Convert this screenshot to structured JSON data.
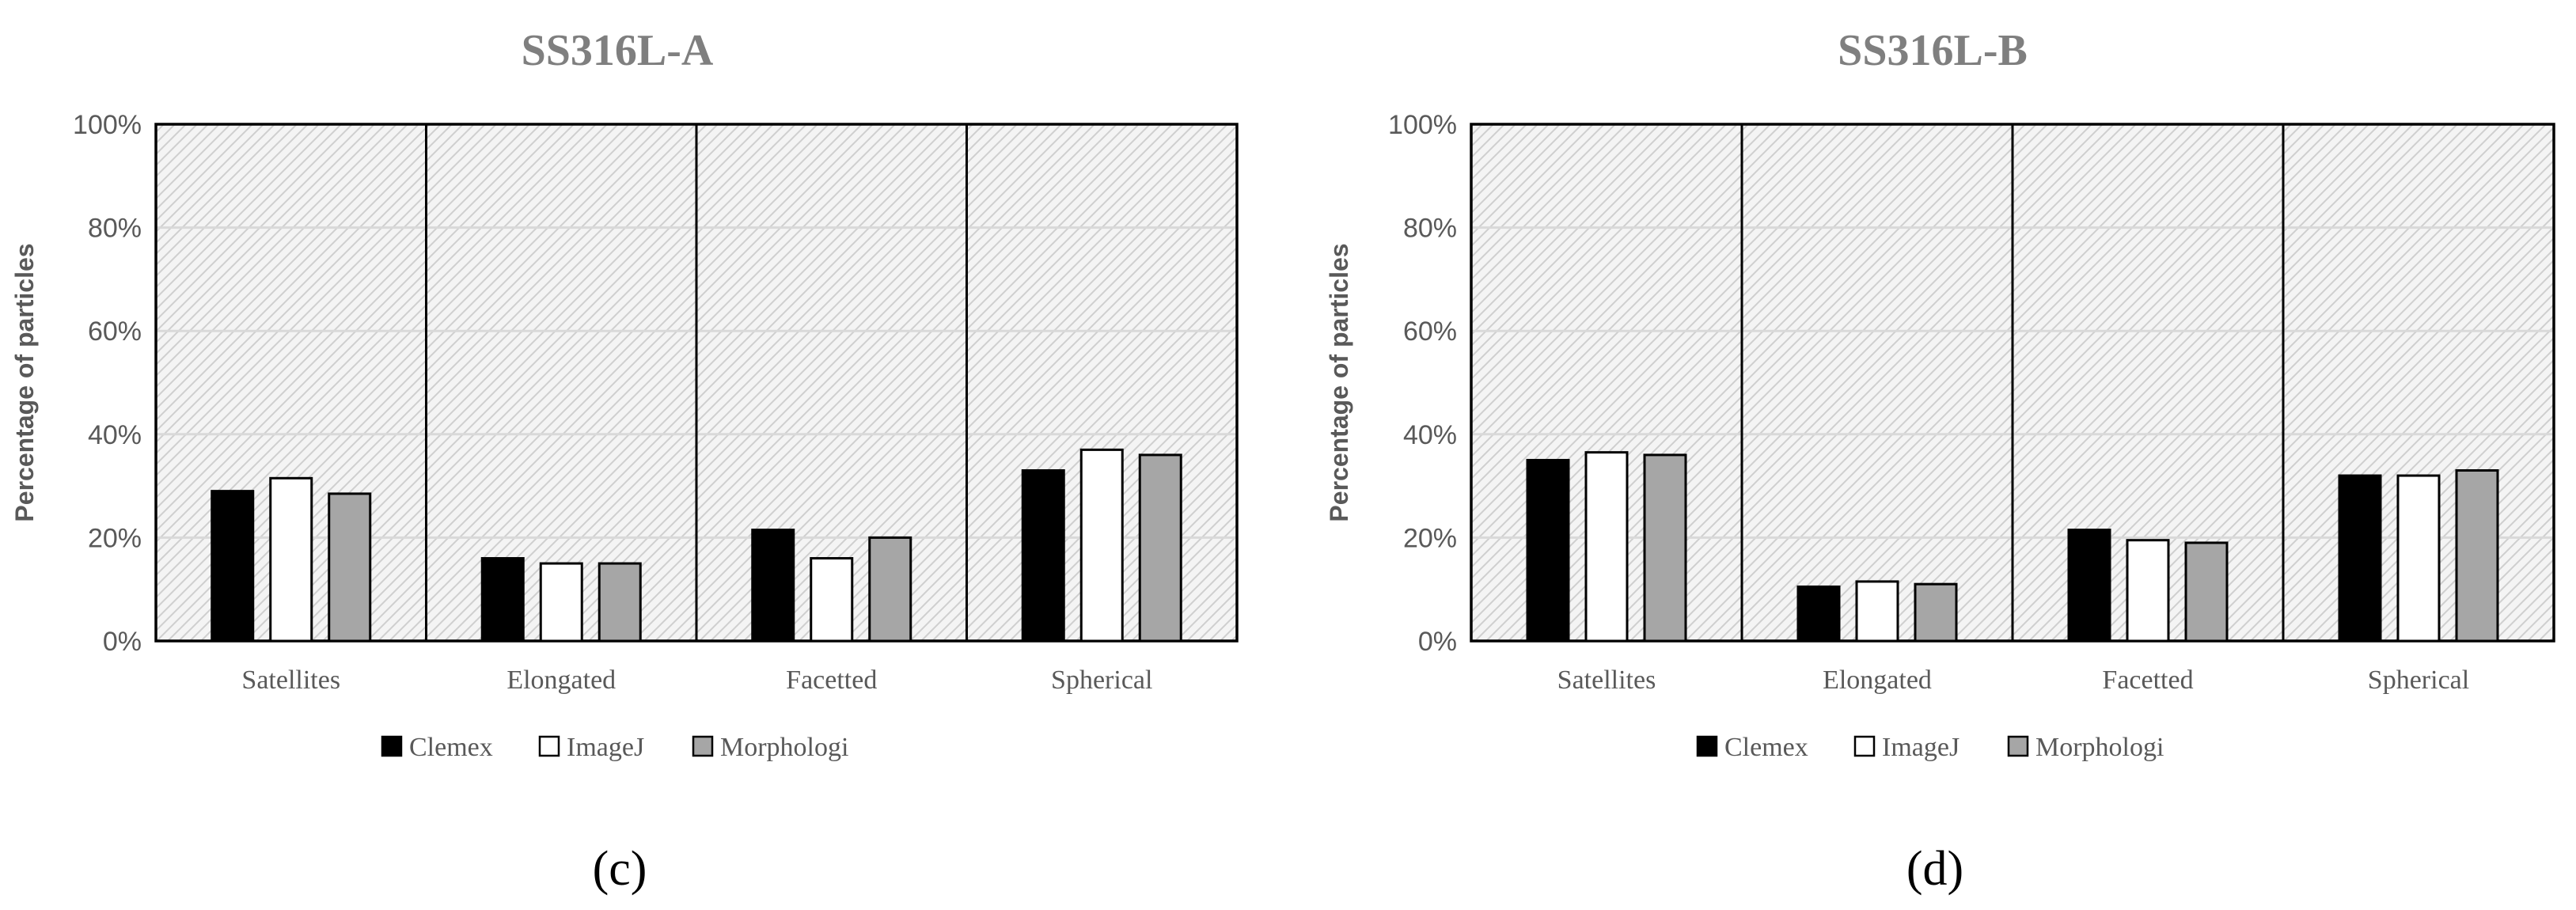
{
  "colors": {
    "title": "#7f7f7f",
    "axis_text": "#595959",
    "grid": "#d9d9d9",
    "hatch": "#d0d0d0",
    "plot_bg": "#f2f2f2",
    "frame": "#000000",
    "clemex": "#000000",
    "imagej": "#ffffff",
    "morphologi": "#a6a6a6"
  },
  "chart_data": [
    {
      "type": "bar",
      "title": "SS316L-A",
      "xlabel": "",
      "ylabel": "Percentage of particles",
      "ylim": [
        0,
        100
      ],
      "yticks": [
        "0%",
        "20%",
        "40%",
        "60%",
        "80%",
        "100%"
      ],
      "grid": true,
      "legend": "bottom-center",
      "categories": [
        "Satellites",
        "Elongated",
        "Facetted",
        "Spherical"
      ],
      "series": [
        {
          "name": "Clemex",
          "values": [
            29,
            16,
            21.5,
            33
          ]
        },
        {
          "name": "ImageJ",
          "values": [
            31.5,
            15,
            16,
            37
          ]
        },
        {
          "name": "Morphologi",
          "values": [
            28.5,
            15,
            20,
            36
          ]
        }
      ],
      "panel_label": "(c)"
    },
    {
      "type": "bar",
      "title": "SS316L-B",
      "xlabel": "",
      "ylabel": "Percentage of particles",
      "ylim": [
        0,
        100
      ],
      "yticks": [
        "0%",
        "20%",
        "40%",
        "60%",
        "80%",
        "100%"
      ],
      "grid": true,
      "legend": "bottom-center",
      "categories": [
        "Satellites",
        "Elongated",
        "Facetted",
        "Spherical"
      ],
      "series": [
        {
          "name": "Clemex",
          "values": [
            35,
            10.5,
            21.5,
            32
          ]
        },
        {
          "name": "ImageJ",
          "values": [
            36.5,
            11.5,
            19.5,
            32
          ]
        },
        {
          "name": "Morphologi",
          "values": [
            36,
            11,
            19,
            33
          ]
        }
      ],
      "panel_label": "(d)"
    }
  ]
}
